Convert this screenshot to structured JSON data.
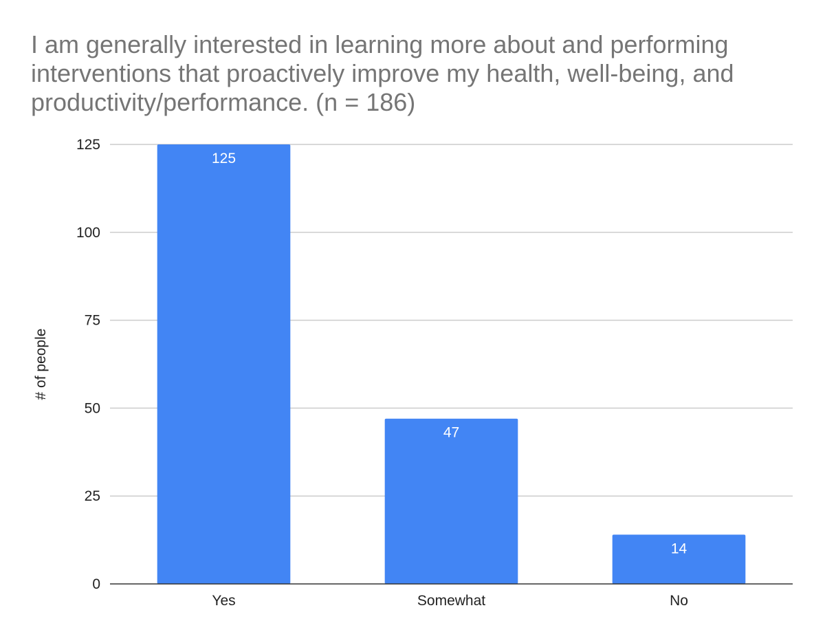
{
  "chart_data": {
    "type": "bar",
    "title": "I am generally interested in learning more about and performing interventions that proactively improve my health, well-being, and productivity/performance. (n = 186)",
    "xlabel": "",
    "ylabel": "# of people",
    "categories": [
      "Yes",
      "Somewhat",
      "No"
    ],
    "values": [
      125,
      47,
      14
    ],
    "ylim": [
      0,
      125
    ],
    "yticks": [
      0,
      25,
      50,
      75,
      100,
      125
    ],
    "grid": true,
    "legend": "none",
    "bar_color": "#4285f4",
    "data_label_color": "#ffffff",
    "title_color": "#757575",
    "gridline_color": "#cccccc",
    "axis_color": "#333333"
  }
}
